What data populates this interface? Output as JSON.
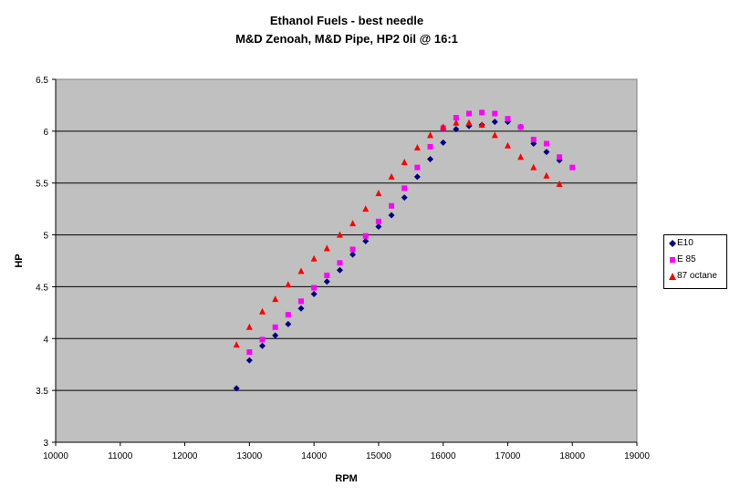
{
  "chart_data": {
    "type": "scatter",
    "title": "Ethanol Fuels - best needle",
    "subtitle": "M&D Zenoah, M&D Pipe, HP2 0il @ 16:1",
    "xlabel": "RPM",
    "ylabel": "HP",
    "xlim": [
      10000,
      19000
    ],
    "ylim": [
      3,
      6.5
    ],
    "xticks": [
      10000,
      11000,
      12000,
      13000,
      14000,
      15000,
      16000,
      17000,
      18000,
      19000
    ],
    "yticks": [
      3,
      3.5,
      4,
      4.5,
      5,
      5.5,
      6,
      6.5
    ],
    "grid": "horizontal",
    "legend_position": "right",
    "series": [
      {
        "name": "E10",
        "color": "#000080",
        "marker": "diamond",
        "x": [
          12800,
          13000,
          13200,
          13400,
          13600,
          13800,
          14000,
          14200,
          14400,
          14600,
          14800,
          15000,
          15200,
          15400,
          15600,
          15800,
          16000,
          16200,
          16400,
          16600,
          16800,
          17000,
          17200,
          17400,
          17600,
          17800
        ],
        "y": [
          3.52,
          3.79,
          3.93,
          4.03,
          4.14,
          4.29,
          4.43,
          4.55,
          4.66,
          4.81,
          4.94,
          5.08,
          5.19,
          5.36,
          5.56,
          5.73,
          5.89,
          6.02,
          6.05,
          6.06,
          6.09,
          6.09,
          6.04,
          5.88,
          5.8,
          5.72
        ]
      },
      {
        "name": "E 85",
        "color": "#ff00ff",
        "marker": "square",
        "x": [
          13000,
          13200,
          13400,
          13600,
          13800,
          14000,
          14200,
          14400,
          14600,
          14800,
          15000,
          15200,
          15400,
          15600,
          15800,
          16000,
          16200,
          16400,
          16600,
          16800,
          17000,
          17200,
          17400,
          17600,
          17800,
          18000
        ],
        "y": [
          3.87,
          3.99,
          4.11,
          4.23,
          4.36,
          4.49,
          4.61,
          4.73,
          4.86,
          4.99,
          5.13,
          5.28,
          5.45,
          5.65,
          5.85,
          6.03,
          6.13,
          6.17,
          6.18,
          6.17,
          6.12,
          6.04,
          5.92,
          5.88,
          5.75,
          5.65
        ]
      },
      {
        "name": "87 octane",
        "color": "#ff0000",
        "marker": "triangle",
        "x": [
          12800,
          13000,
          13200,
          13400,
          13600,
          13800,
          14000,
          14200,
          14400,
          14600,
          14800,
          15000,
          15200,
          15400,
          15600,
          15800,
          16000,
          16200,
          16400,
          16600,
          16800,
          17000,
          17200,
          17400,
          17600,
          17800
        ],
        "y": [
          3.94,
          4.11,
          4.26,
          4.38,
          4.52,
          4.65,
          4.77,
          4.87,
          5.0,
          5.11,
          5.25,
          5.4,
          5.56,
          5.7,
          5.84,
          5.96,
          6.04,
          6.08,
          6.08,
          6.06,
          5.96,
          5.86,
          5.75,
          5.65,
          5.57,
          5.49
        ]
      }
    ]
  }
}
